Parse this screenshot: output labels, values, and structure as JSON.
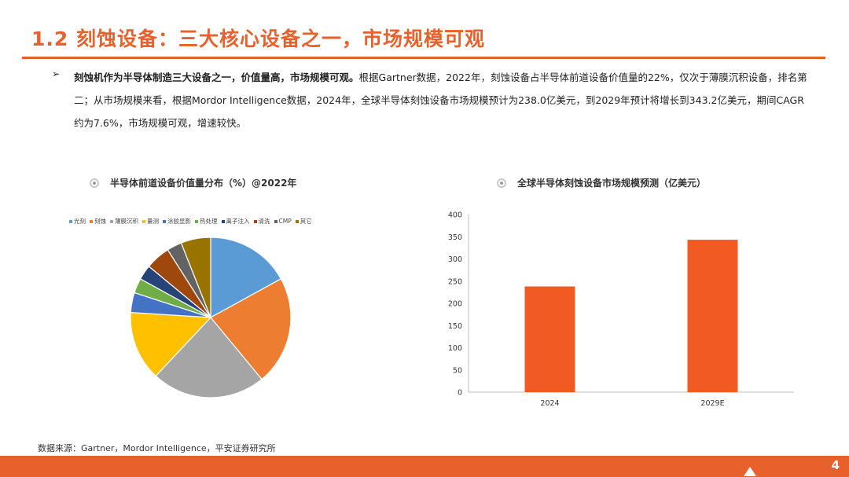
{
  "title": "1.2 刻蚀设备：三大核心设备之一，市场规模可观",
  "body": {
    "bold_lead": "刻蚀机作为半导体制造三大设备之一，价值量高，市场规模可观。",
    "text": "根据Gartner数据，2022年，刻蚀设备占半导体前道设备价值量的22%，仅次于薄膜沉积设备，排名第二；从市场规模来看，根据Mordor Intelligence数据，2024年，全球半导体刻蚀设备市场规模预计为238.0亿美元，到2029年预计将增长到343.2亿美元，期间CAGR约为7.6%，市场规模可观，增速较快。"
  },
  "left_chart": {
    "title": "半导体前道设备价值量分布（%）@2022年",
    "legend_icon": "radio-icon"
  },
  "right_chart": {
    "title": "全球半导体刻蚀设备市场规模预测（亿美元）",
    "legend_icon": "radio-icon"
  },
  "chart_data": [
    {
      "type": "pie",
      "title": "半导体前道设备价值量分布（%）@2022年",
      "legend_position": "top",
      "categories": [
        "光刻",
        "刻蚀",
        "薄膜沉积",
        "量测",
        "涂胶显影",
        "热处理",
        "离子注入",
        "清洗",
        "CMP",
        "其它"
      ],
      "values": [
        17,
        22,
        23,
        14,
        4,
        3,
        3,
        5,
        3,
        6
      ],
      "colors": [
        "#5b9bd5",
        "#ed7d31",
        "#a5a5a5",
        "#ffc000",
        "#4472c4",
        "#70ad47",
        "#264478",
        "#9e480e",
        "#636363",
        "#997300"
      ]
    },
    {
      "type": "bar",
      "title": "全球半导体刻蚀设备市场规模预测（亿美元）",
      "categories": [
        "2024",
        "2029E"
      ],
      "values": [
        238.0,
        343.2
      ],
      "ylim": [
        0,
        400
      ],
      "yticks": [
        0,
        50,
        100,
        150,
        200,
        250,
        300,
        350,
        400
      ],
      "color": "#f15a22",
      "grid": false
    }
  ],
  "source": "数据来源：Gartner，Mordor Intelligence，平安证券研究所",
  "page_number": "4"
}
